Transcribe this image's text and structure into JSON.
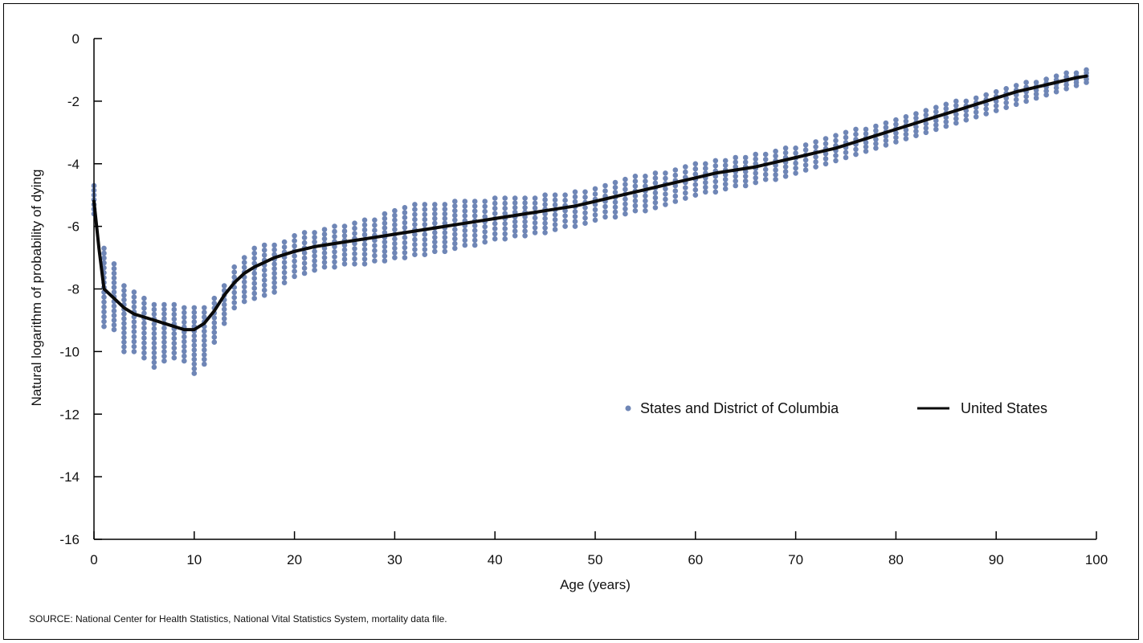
{
  "chart_data": {
    "type": "scatter",
    "xlabel": "Age (years)",
    "ylabel": "Natural logarithm of probability of dying",
    "xlim": [
      0,
      100
    ],
    "ylim": [
      -16,
      0
    ],
    "x_ticks": [
      0,
      10,
      20,
      30,
      40,
      50,
      60,
      70,
      80,
      90,
      100
    ],
    "y_ticks": [
      0,
      -2,
      -4,
      -6,
      -8,
      -10,
      -12,
      -14,
      -16
    ],
    "legend_position": "center-right",
    "colors": {
      "states": "#6f86b6",
      "united_states": "#0a0a0a"
    },
    "series": [
      {
        "name": "States and District of Columbia",
        "kind": "scatter-band",
        "ages": [
          0,
          1,
          2,
          3,
          4,
          5,
          6,
          7,
          8,
          9,
          10,
          11,
          12,
          13,
          14,
          15,
          16,
          17,
          18,
          19,
          20,
          21,
          22,
          23,
          24,
          25,
          26,
          27,
          28,
          29,
          30,
          31,
          32,
          33,
          34,
          35,
          36,
          37,
          38,
          39,
          40,
          41,
          42,
          43,
          44,
          45,
          46,
          47,
          48,
          49,
          50,
          51,
          52,
          53,
          54,
          55,
          56,
          57,
          58,
          59,
          60,
          61,
          62,
          63,
          64,
          65,
          66,
          67,
          68,
          69,
          70,
          71,
          72,
          73,
          74,
          75,
          76,
          77,
          78,
          79,
          80,
          81,
          82,
          83,
          84,
          85,
          86,
          87,
          88,
          89,
          90,
          91,
          92,
          93,
          94,
          95,
          96,
          97,
          98,
          99
        ],
        "band_min": [
          -5.6,
          -9.2,
          -9.3,
          -10.0,
          -10.0,
          -10.2,
          -10.5,
          -10.3,
          -10.2,
          -10.3,
          -10.7,
          -10.4,
          -9.7,
          -9.1,
          -8.6,
          -8.4,
          -8.3,
          -8.2,
          -8.1,
          -7.8,
          -7.6,
          -7.5,
          -7.4,
          -7.3,
          -7.3,
          -7.2,
          -7.2,
          -7.2,
          -7.1,
          -7.1,
          -7.0,
          -7.0,
          -6.9,
          -6.9,
          -6.8,
          -6.8,
          -6.7,
          -6.6,
          -6.6,
          -6.5,
          -6.4,
          -6.4,
          -6.3,
          -6.3,
          -6.2,
          -6.2,
          -6.1,
          -6.0,
          -6.0,
          -5.9,
          -5.8,
          -5.7,
          -5.7,
          -5.6,
          -5.5,
          -5.5,
          -5.4,
          -5.3,
          -5.2,
          -5.1,
          -5.0,
          -4.9,
          -4.9,
          -4.8,
          -4.7,
          -4.7,
          -4.6,
          -4.5,
          -4.5,
          -4.4,
          -4.3,
          -4.2,
          -4.1,
          -4.0,
          -3.9,
          -3.8,
          -3.7,
          -3.6,
          -3.5,
          -3.4,
          -3.3,
          -3.2,
          -3.1,
          -3.0,
          -2.9,
          -2.8,
          -2.7,
          -2.6,
          -2.5,
          -2.4,
          -2.3,
          -2.2,
          -2.1,
          -2.0,
          -1.9,
          -1.8,
          -1.7,
          -1.6,
          -1.5,
          -1.4
        ],
        "band_max": [
          -4.7,
          -6.7,
          -7.2,
          -7.9,
          -8.1,
          -8.3,
          -8.5,
          -8.5,
          -8.5,
          -8.6,
          -8.6,
          -8.6,
          -8.3,
          -7.9,
          -7.3,
          -7.0,
          -6.7,
          -6.6,
          -6.6,
          -6.5,
          -6.3,
          -6.2,
          -6.2,
          -6.1,
          -6.0,
          -6.0,
          -5.9,
          -5.8,
          -5.8,
          -5.6,
          -5.5,
          -5.4,
          -5.3,
          -5.3,
          -5.3,
          -5.3,
          -5.2,
          -5.2,
          -5.2,
          -5.2,
          -5.1,
          -5.1,
          -5.1,
          -5.1,
          -5.1,
          -5.0,
          -5.0,
          -5.0,
          -4.9,
          -4.9,
          -4.8,
          -4.7,
          -4.6,
          -4.5,
          -4.4,
          -4.4,
          -4.3,
          -4.3,
          -4.2,
          -4.1,
          -4.0,
          -4.0,
          -3.9,
          -3.9,
          -3.8,
          -3.8,
          -3.7,
          -3.7,
          -3.6,
          -3.5,
          -3.5,
          -3.4,
          -3.3,
          -3.2,
          -3.1,
          -3.0,
          -2.9,
          -2.9,
          -2.8,
          -2.7,
          -2.6,
          -2.5,
          -2.4,
          -2.3,
          -2.2,
          -2.1,
          -2.0,
          -2.0,
          -1.9,
          -1.8,
          -1.7,
          -1.6,
          -1.5,
          -1.4,
          -1.4,
          -1.3,
          -1.2,
          -1.1,
          -1.1,
          -1.0
        ]
      },
      {
        "name": "United States",
        "kind": "line",
        "x": [
          0,
          0.5,
          1,
          2,
          3,
          4,
          5,
          6,
          7,
          8,
          9,
          10,
          11,
          12,
          13,
          14,
          15,
          16,
          17,
          18,
          19,
          20,
          22,
          24,
          26,
          28,
          30,
          32,
          34,
          36,
          38,
          40,
          42,
          44,
          46,
          48,
          50,
          52,
          54,
          56,
          58,
          60,
          62,
          64,
          66,
          68,
          70,
          72,
          74,
          76,
          78,
          80,
          82,
          84,
          86,
          88,
          90,
          92,
          94,
          96,
          98,
          99
        ],
        "y": [
          -5.2,
          -6.7,
          -8.0,
          -8.3,
          -8.6,
          -8.8,
          -8.9,
          -9.0,
          -9.1,
          -9.2,
          -9.3,
          -9.3,
          -9.1,
          -8.7,
          -8.2,
          -7.8,
          -7.5,
          -7.3,
          -7.15,
          -7.0,
          -6.9,
          -6.8,
          -6.65,
          -6.55,
          -6.45,
          -6.35,
          -6.25,
          -6.15,
          -6.05,
          -5.95,
          -5.85,
          -5.75,
          -5.65,
          -5.55,
          -5.45,
          -5.35,
          -5.2,
          -5.05,
          -4.9,
          -4.75,
          -4.6,
          -4.45,
          -4.3,
          -4.2,
          -4.1,
          -3.95,
          -3.8,
          -3.65,
          -3.5,
          -3.3,
          -3.1,
          -2.9,
          -2.7,
          -2.5,
          -2.3,
          -2.1,
          -1.9,
          -1.7,
          -1.55,
          -1.4,
          -1.25,
          -1.2
        ]
      }
    ]
  },
  "legend": {
    "states_label": "States and District of Columbia",
    "us_label": "United States"
  },
  "source_note": "SOURCE: National Center for Health Statistics, National Vital Statistics System, mortality data file."
}
